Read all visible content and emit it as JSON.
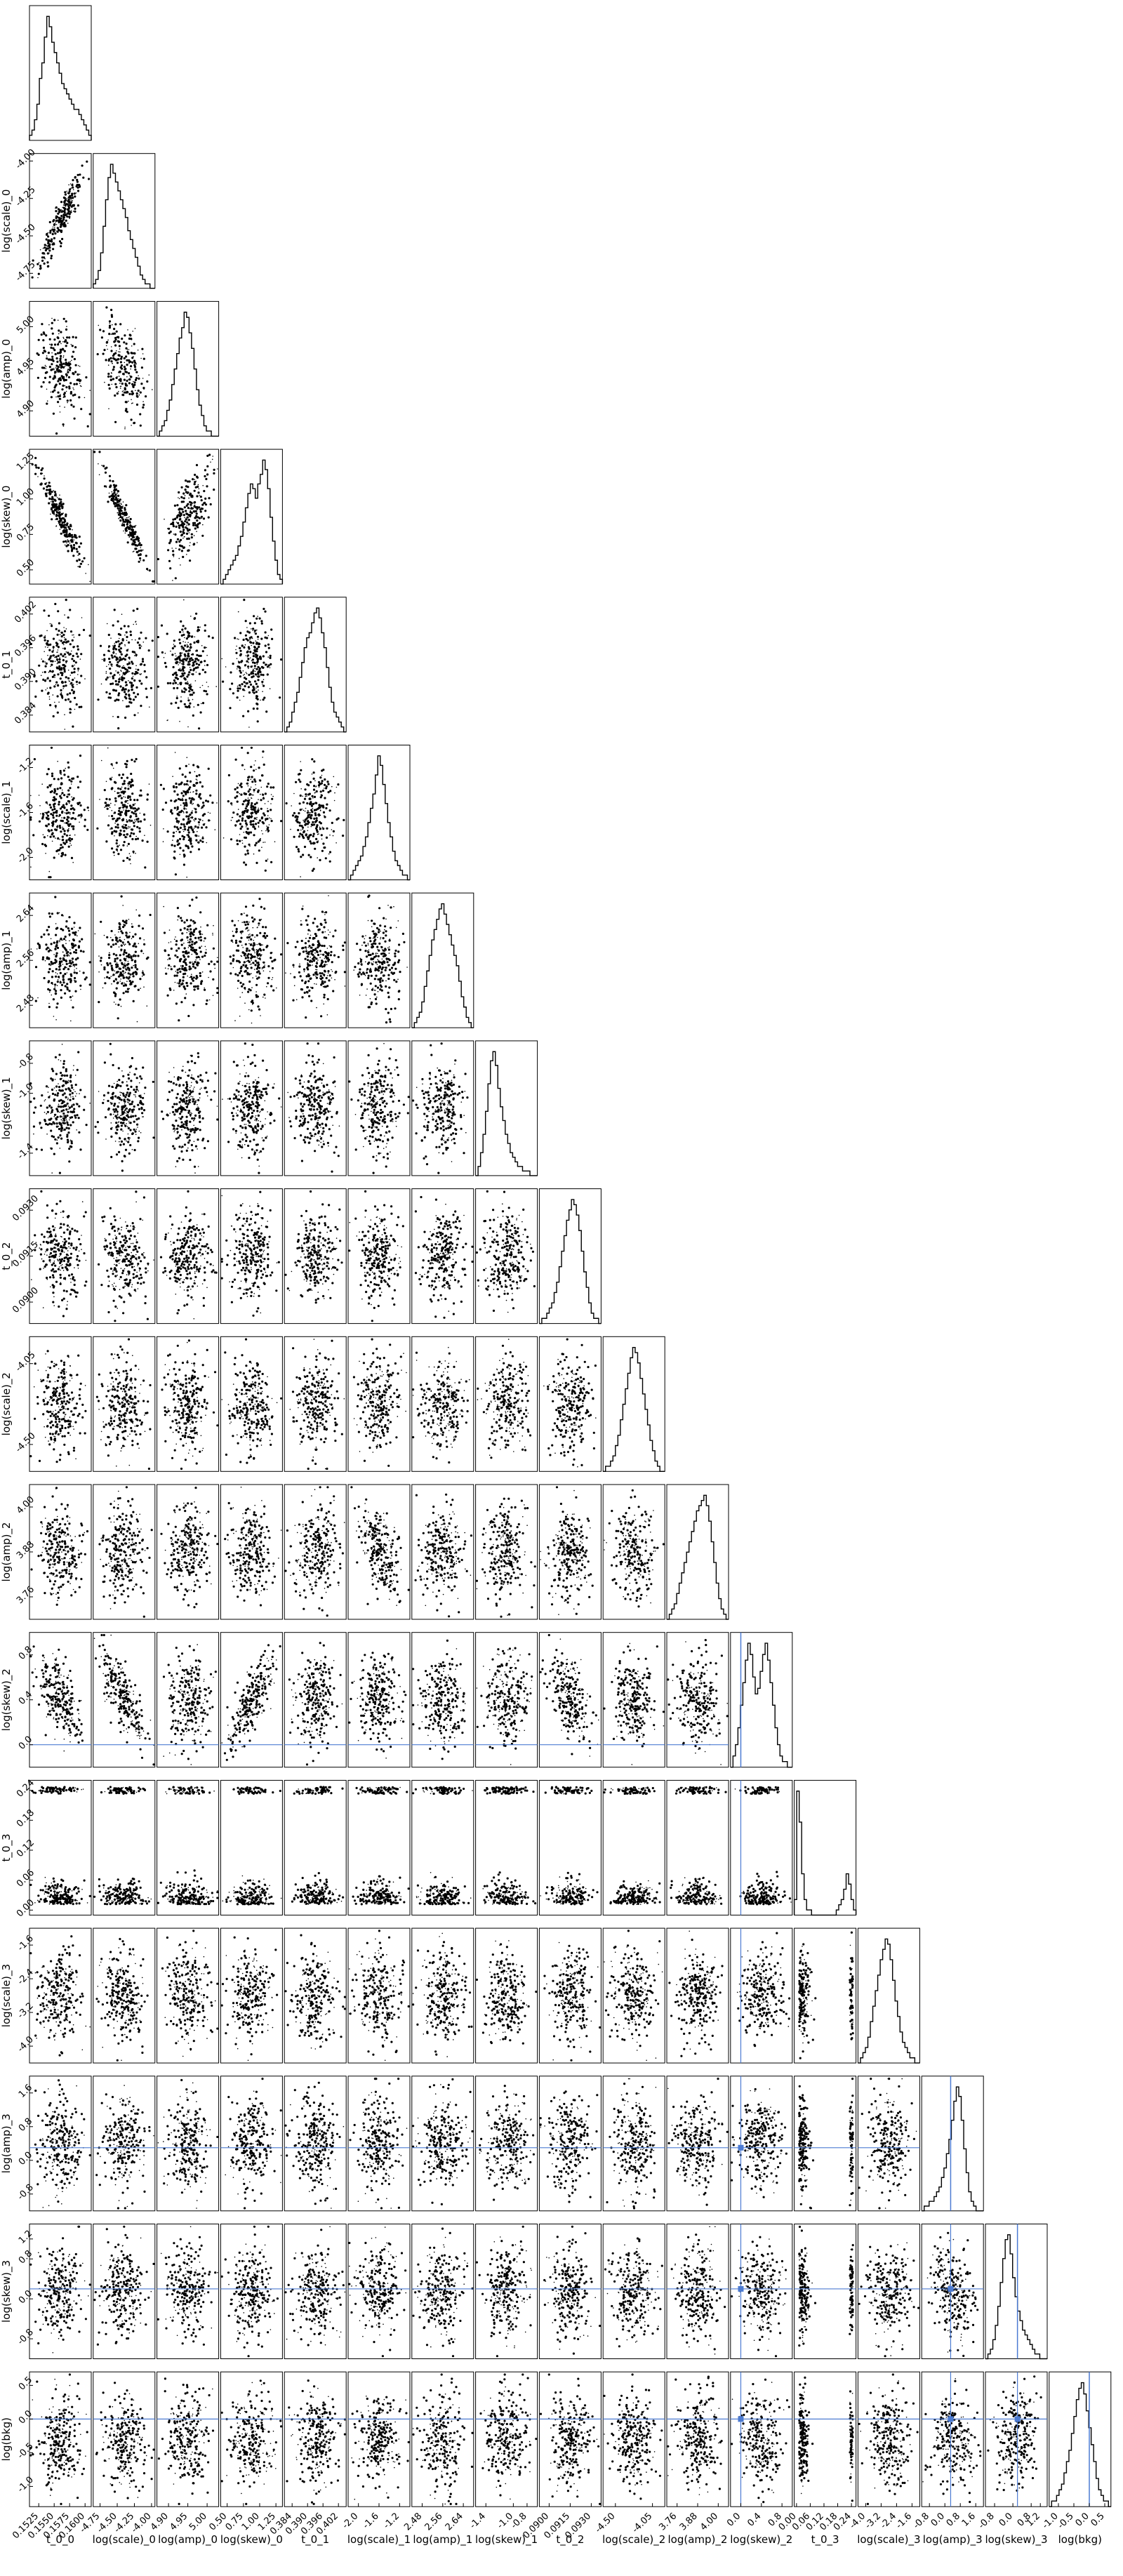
{
  "chart_data": {
    "type": "corner",
    "grid": false,
    "truth_color": "#4c7bd2",
    "parameters": [
      {
        "label": "t_0_0",
        "ticks": [
          "0.1525",
          "0.1550",
          "0.1575",
          "0.1600"
        ],
        "lim": [
          0.151,
          0.161
        ],
        "truth": null
      },
      {
        "label": "log(scale)_0",
        "ticks": [
          "-4.75",
          "-4.50",
          "-4.25",
          "-4.00"
        ],
        "lim": [
          -4.85,
          -3.95
        ],
        "truth": null
      },
      {
        "label": "log(amp)_0",
        "ticks": [
          "4.90",
          "4.95",
          "5.00"
        ],
        "lim": [
          4.87,
          5.03
        ],
        "truth": null
      },
      {
        "label": "log(skew)_0",
        "ticks": [
          "0.50",
          "0.75",
          "1.00",
          "1.25"
        ],
        "lim": [
          0.4,
          1.35
        ],
        "truth": null
      },
      {
        "label": "t_0_1",
        "ticks": [
          "0.384",
          "0.390",
          "0.396",
          "0.402"
        ],
        "lim": [
          0.381,
          0.405
        ],
        "truth": null
      },
      {
        "label": "log(scale)_1",
        "ticks": [
          "-2.0",
          "-1.6",
          "-1.2"
        ],
        "lim": [
          -2.2,
          -1.0
        ],
        "truth": null
      },
      {
        "label": "log(amp)_1",
        "ticks": [
          "2.48",
          "2.56",
          "2.64"
        ],
        "lim": [
          2.44,
          2.68
        ],
        "truth": null
      },
      {
        "label": "log(skew)_1",
        "ticks": [
          "-1.4",
          "-1.0",
          "-0.8"
        ],
        "lim": [
          -1.55,
          -0.65
        ],
        "truth": null
      },
      {
        "label": "t_0_2",
        "ticks": [
          "0.0900",
          "0.0915",
          "0.0930"
        ],
        "lim": [
          0.0893,
          0.0937
        ],
        "truth": null
      },
      {
        "label": "log(scale)_2",
        "ticks": [
          "-4.50",
          "-4.05"
        ],
        "lim": [
          -4.65,
          -3.9
        ],
        "truth": null
      },
      {
        "label": "log(amp)_2",
        "ticks": [
          "3.76",
          "3.88",
          "4.00"
        ],
        "lim": [
          3.7,
          4.06
        ],
        "truth": null
      },
      {
        "label": "log(skew)_2",
        "ticks": [
          "0.0",
          "0.4",
          "0.8"
        ],
        "lim": [
          -0.2,
          1.0
        ],
        "truth": 0.0
      },
      {
        "label": "t_0_3",
        "ticks": [
          "0.00",
          "0.06",
          "0.12",
          "0.18",
          "0.24"
        ],
        "lim": [
          -0.01,
          0.26
        ],
        "truth": null
      },
      {
        "label": "log(scale)_3",
        "ticks": [
          "-4.0",
          "-3.2",
          "-2.4",
          "-1.6"
        ],
        "lim": [
          -4.4,
          -1.2
        ],
        "truth": null
      },
      {
        "label": "log(amp)_3",
        "ticks": [
          "-0.8",
          "0.0",
          "0.8",
          "1.6"
        ],
        "lim": [
          -1.2,
          2.0
        ],
        "truth": 0.3
      },
      {
        "label": "log(skew)_3",
        "ticks": [
          "-0.8",
          "0.0",
          "0.8",
          "1.2"
        ],
        "lim": [
          -1.2,
          1.5
        ],
        "truth": 0.2
      },
      {
        "label": "log(bkg)",
        "ticks": [
          "-1.0",
          "-0.5",
          "0.0",
          "0.5"
        ],
        "lim": [
          -1.3,
          0.7
        ],
        "truth": 0.0
      }
    ],
    "histograms": [
      [
        1,
        2,
        4,
        7,
        12,
        15,
        20,
        24,
        22,
        19,
        17,
        15,
        13,
        11,
        10,
        9,
        8,
        7,
        6,
        6,
        5,
        4,
        3,
        2,
        1
      ],
      [
        1,
        2,
        4,
        8,
        14,
        20,
        25,
        28,
        26,
        24,
        22,
        20,
        18,
        16,
        13,
        11,
        9,
        7,
        5,
        3,
        2,
        1,
        1,
        0,
        0
      ],
      [
        0,
        1,
        2,
        3,
        5,
        7,
        10,
        13,
        16,
        19,
        21,
        24,
        23,
        20,
        17,
        13,
        9,
        6,
        4,
        2,
        1,
        1,
        0,
        0,
        0
      ],
      [
        0,
        1,
        2,
        3,
        4,
        5,
        6,
        8,
        10,
        13,
        16,
        19,
        21,
        20,
        18,
        21,
        23,
        26,
        24,
        20,
        14,
        9,
        5,
        2,
        1
      ],
      [
        0,
        1,
        2,
        4,
        6,
        8,
        11,
        14,
        17,
        19,
        20,
        22,
        24,
        25,
        23,
        20,
        17,
        13,
        9,
        6,
        4,
        3,
        2,
        1,
        0
      ],
      [
        0,
        1,
        2,
        3,
        4,
        5,
        7,
        9,
        12,
        15,
        18,
        22,
        26,
        24,
        20,
        16,
        12,
        9,
        6,
        4,
        3,
        2,
        1,
        1,
        0
      ],
      [
        0,
        1,
        2,
        3,
        5,
        8,
        11,
        14,
        17,
        19,
        21,
        23,
        24,
        22,
        20,
        18,
        16,
        14,
        12,
        9,
        6,
        4,
        2,
        1,
        0
      ],
      [
        0,
        2,
        5,
        9,
        14,
        20,
        25,
        27,
        24,
        19,
        15,
        12,
        9,
        7,
        5,
        4,
        3,
        2,
        2,
        1,
        1,
        1,
        0,
        0,
        0
      ],
      [
        0,
        1,
        1,
        2,
        3,
        4,
        6,
        8,
        11,
        14,
        17,
        20,
        22,
        24,
        23,
        21,
        18,
        14,
        10,
        7,
        4,
        2,
        1,
        1,
        0
      ],
      [
        0,
        1,
        1,
        2,
        3,
        5,
        7,
        10,
        13,
        16,
        19,
        22,
        24,
        23,
        21,
        18,
        15,
        12,
        9,
        6,
        4,
        2,
        1,
        0,
        0
      ],
      [
        0,
        1,
        2,
        3,
        5,
        7,
        9,
        11,
        13,
        15,
        17,
        19,
        21,
        22,
        23,
        24,
        22,
        19,
        15,
        11,
        7,
        4,
        2,
        1,
        0
      ],
      [
        0,
        2,
        4,
        7,
        11,
        15,
        19,
        22,
        20,
        16,
        13,
        14,
        17,
        20,
        22,
        19,
        15,
        11,
        7,
        4,
        2,
        1,
        1,
        0,
        0
      ],
      [
        3,
        24,
        18,
        8,
        3,
        1,
        1,
        0,
        0,
        0,
        0,
        0,
        0,
        0,
        0,
        0,
        0,
        1,
        2,
        3,
        5,
        8,
        6,
        3,
        1
      ],
      [
        0,
        1,
        2,
        3,
        5,
        8,
        11,
        14,
        17,
        20,
        22,
        24,
        23,
        20,
        16,
        12,
        9,
        6,
        4,
        3,
        2,
        1,
        1,
        0,
        0
      ],
      [
        0,
        1,
        1,
        2,
        2,
        3,
        4,
        5,
        7,
        9,
        12,
        15,
        19,
        23,
        26,
        24,
        19,
        13,
        8,
        4,
        2,
        1,
        0,
        0,
        0
      ],
      [
        0,
        1,
        2,
        4,
        7,
        11,
        16,
        21,
        25,
        26,
        22,
        17,
        13,
        10,
        8,
        6,
        5,
        4,
        3,
        2,
        1,
        1,
        0,
        0,
        0
      ],
      [
        0,
        1,
        1,
        2,
        3,
        4,
        6,
        8,
        10,
        13,
        16,
        19,
        21,
        22,
        20,
        17,
        14,
        11,
        8,
        5,
        3,
        2,
        1,
        1,
        0
      ]
    ]
  }
}
